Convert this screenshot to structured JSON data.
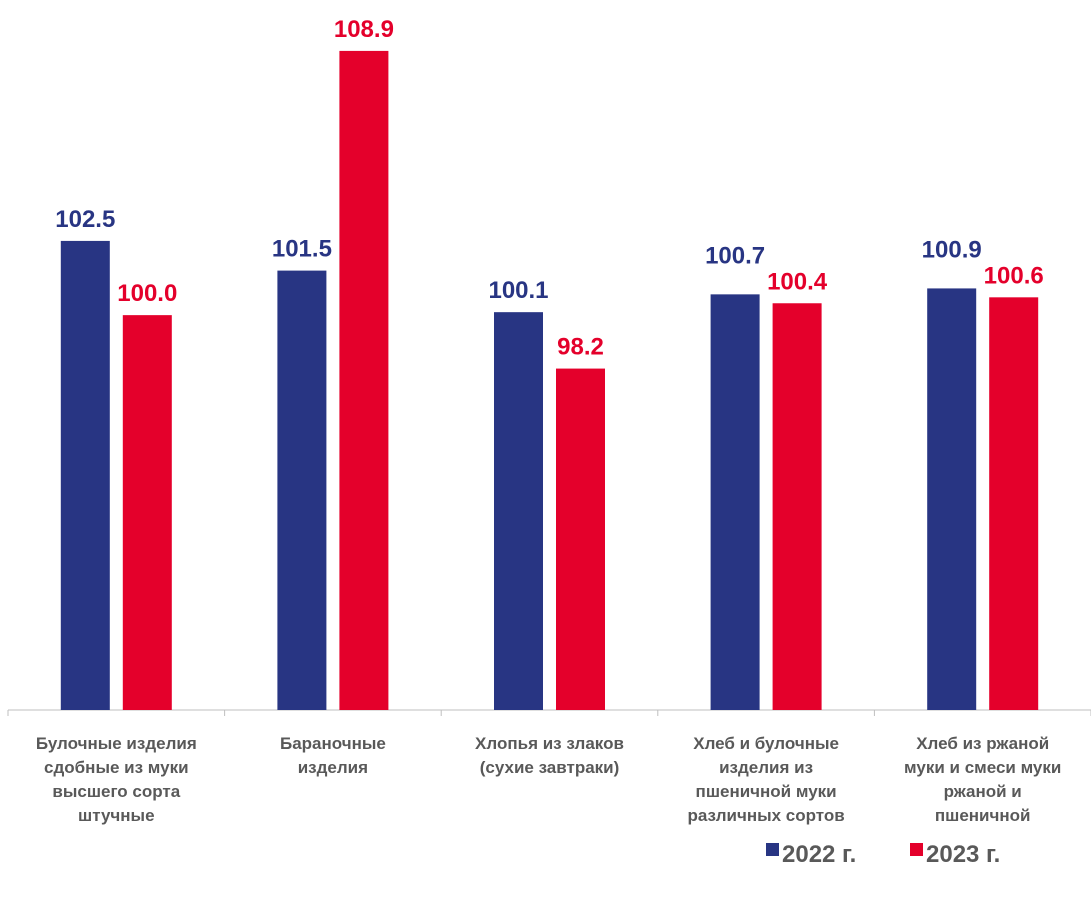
{
  "colors": {
    "series_2022": "#283583",
    "series_2023": "#e4002b",
    "axis": "#bfbfbf",
    "category_text": "#595959"
  },
  "chart_data": {
    "type": "bar",
    "categories": [
      [
        "Булочные изделия",
        "сдобные из муки",
        "высшего сорта",
        "штучные"
      ],
      [
        "Бараночные",
        "изделия"
      ],
      [
        "Хлопья из злаков",
        "(сухие завтраки)"
      ],
      [
        "Хлеб и булочные",
        "изделия из",
        "пшеничной муки",
        "различных сортов"
      ],
      [
        "Хлеб из ржаной",
        "муки и смеси муки",
        "ржаной и",
        "пшеничной"
      ]
    ],
    "series": [
      {
        "name": "2022 г.",
        "values": [
          102.5,
          101.5,
          100.1,
          100.7,
          100.9
        ],
        "labels": [
          "102.5",
          "101.5",
          "100.1",
          "100.7",
          "100.9"
        ]
      },
      {
        "name": "2023 г.",
        "values": [
          100.0,
          108.9,
          98.2,
          100.4,
          100.6
        ],
        "labels": [
          "100.0",
          "108.9",
          "98.2",
          "100.4",
          "100.6"
        ]
      }
    ],
    "title": "",
    "xlabel": "",
    "ylabel": "",
    "ylim": [
      86.7,
      109.2
    ],
    "grid": false,
    "legend": "bottom-right"
  }
}
